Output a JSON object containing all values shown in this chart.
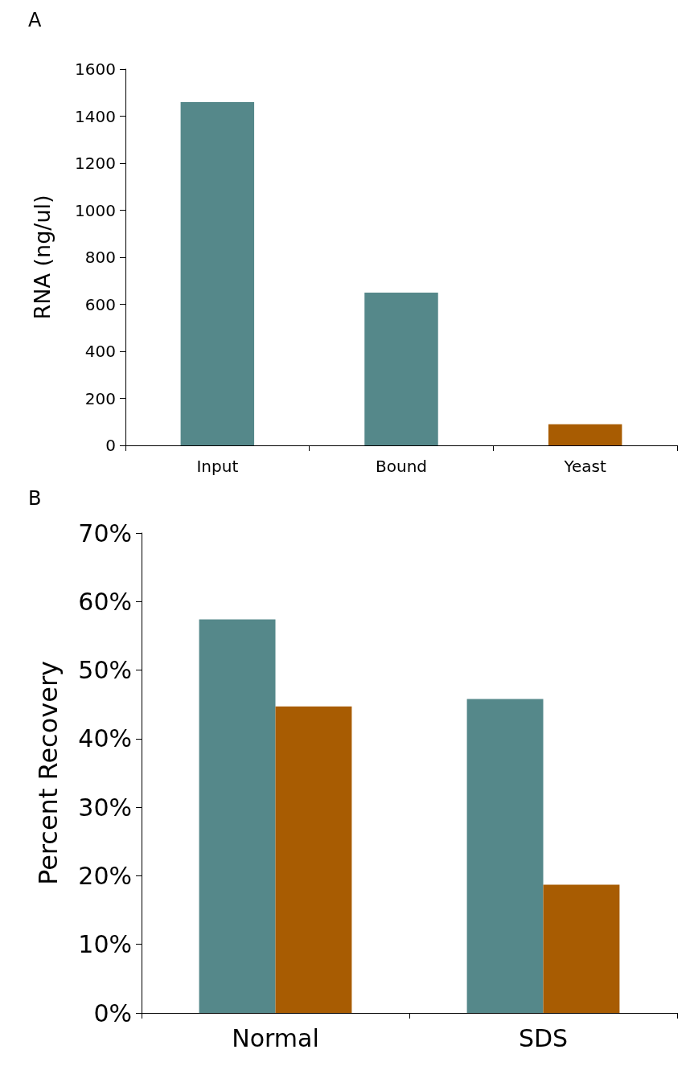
{
  "chart_data": [
    {
      "type": "bar",
      "title": "A",
      "ylabel": "RNA (ng/ul)",
      "categories": [
        "Input",
        "Bound",
        "Yeast"
      ],
      "values": [
        1460,
        650,
        90
      ],
      "colors": [
        "#55888a",
        "#55888a",
        "#a85c02"
      ],
      "ylim": [
        0,
        1600
      ],
      "yticks": [
        0,
        200,
        400,
        600,
        800,
        1000,
        1200,
        1400,
        1600
      ]
    },
    {
      "type": "bar",
      "title": "B",
      "ylabel": "Percent Recovery",
      "categories": [
        "Normal",
        "SDS"
      ],
      "series": [
        {
          "color": "#55888a",
          "values": [
            57.4,
            45.8
          ]
        },
        {
          "color": "#a85c02",
          "values": [
            44.7,
            18.7
          ]
        }
      ],
      "ylim": [
        0,
        70
      ],
      "yticks": [
        {
          "value": 0,
          "label": "0%"
        },
        {
          "value": 10,
          "label": "10%"
        },
        {
          "value": 20,
          "label": "20%"
        },
        {
          "value": 30,
          "label": "30%"
        },
        {
          "value": 40,
          "label": "40%"
        },
        {
          "value": 50,
          "label": "50%"
        },
        {
          "value": 60,
          "label": "60%"
        },
        {
          "value": 70,
          "label": "70%"
        }
      ]
    }
  ]
}
